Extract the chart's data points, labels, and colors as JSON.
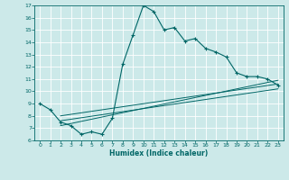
{
  "title": "",
  "xlabel": "Humidex (Indice chaleur)",
  "bg_color": "#cce9e9",
  "grid_color": "#ffffff",
  "line_color": "#006666",
  "xlim": [
    -0.5,
    23.5
  ],
  "ylim": [
    6,
    17
  ],
  "xticks": [
    0,
    1,
    2,
    3,
    4,
    5,
    6,
    7,
    8,
    9,
    10,
    11,
    12,
    13,
    14,
    15,
    16,
    17,
    18,
    19,
    20,
    21,
    22,
    23
  ],
  "yticks": [
    6,
    7,
    8,
    9,
    10,
    11,
    12,
    13,
    14,
    15,
    16,
    17
  ],
  "main_x": [
    0,
    1,
    2,
    3,
    4,
    5,
    6,
    7,
    8,
    9,
    10,
    11,
    12,
    13,
    14,
    15,
    16,
    17,
    18,
    19,
    20,
    21,
    22,
    23
  ],
  "main_y": [
    9.0,
    8.5,
    7.5,
    7.2,
    6.5,
    6.7,
    6.5,
    7.8,
    12.2,
    14.6,
    17.0,
    16.5,
    15.0,
    15.2,
    14.1,
    14.3,
    13.5,
    13.2,
    12.8,
    11.5,
    11.2,
    11.2,
    11.0,
    10.5
  ],
  "line1_x": [
    2,
    23
  ],
  "line1_y": [
    8.0,
    10.6
  ],
  "line2_x": [
    2,
    23
  ],
  "line2_y": [
    7.6,
    10.2
  ],
  "line3_x": [
    2,
    23
  ],
  "line3_y": [
    7.2,
    10.9
  ]
}
